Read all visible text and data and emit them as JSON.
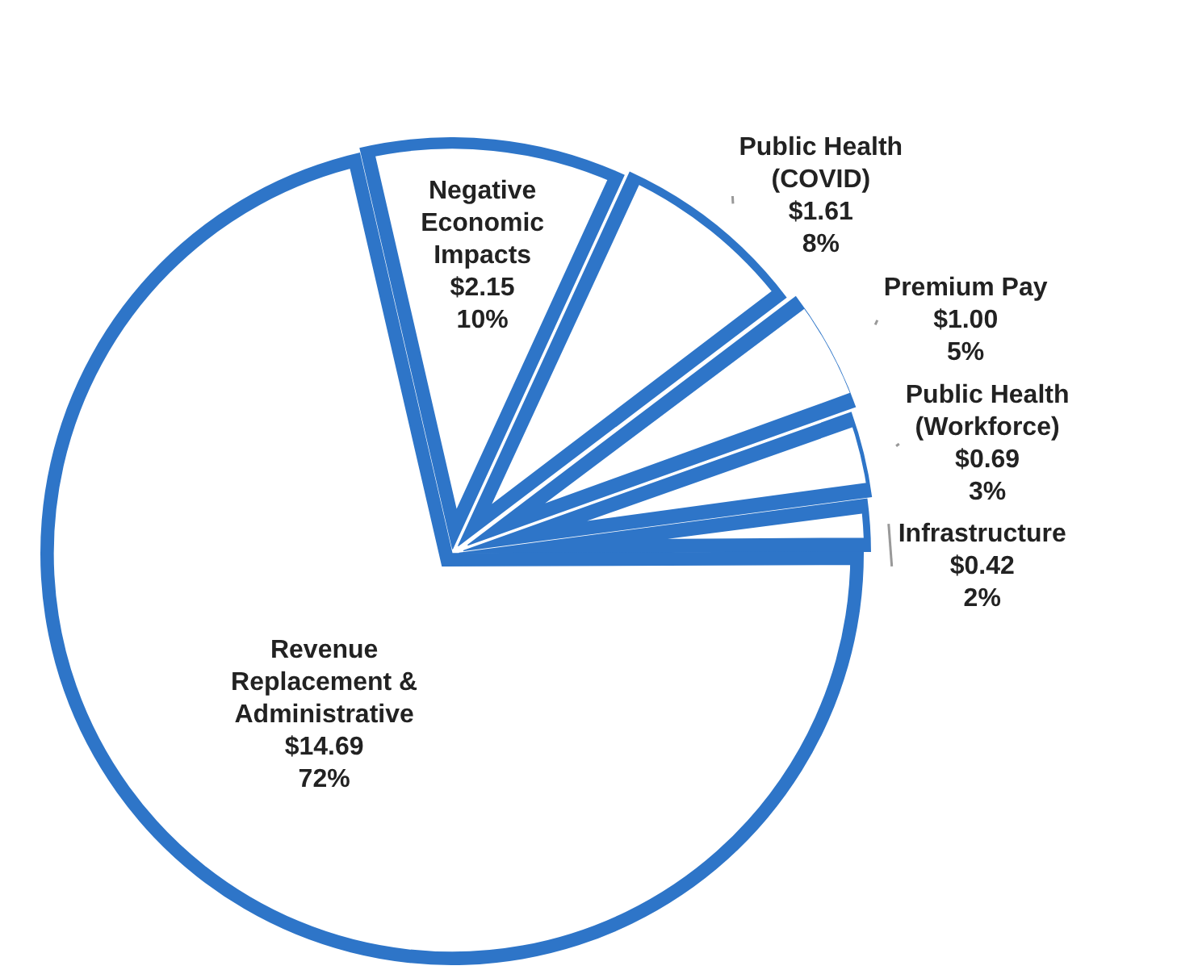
{
  "chart_data": {
    "type": "pie",
    "categories": [
      "Negative Economic Impacts",
      "Public Health (COVID)",
      "Premium Pay",
      "Public Health (Workforce)",
      "Infrastructure",
      "Revenue Replacement & Administrative"
    ],
    "values": [
      2.15,
      1.61,
      1.0,
      0.69,
      0.42,
      14.69
    ],
    "value_labels": [
      "$2.15\n10%",
      "$1.61\n8%",
      "$1.00\n5%",
      "$0.69\n3%",
      "$0.42\n2%",
      "$14.69\n72%"
    ],
    "colors": [
      "#ffffff",
      "#ffffff",
      "#ffffff",
      "#ffffff",
      "#ffffff",
      "#ffffff"
    ],
    "legend": false
  }
}
